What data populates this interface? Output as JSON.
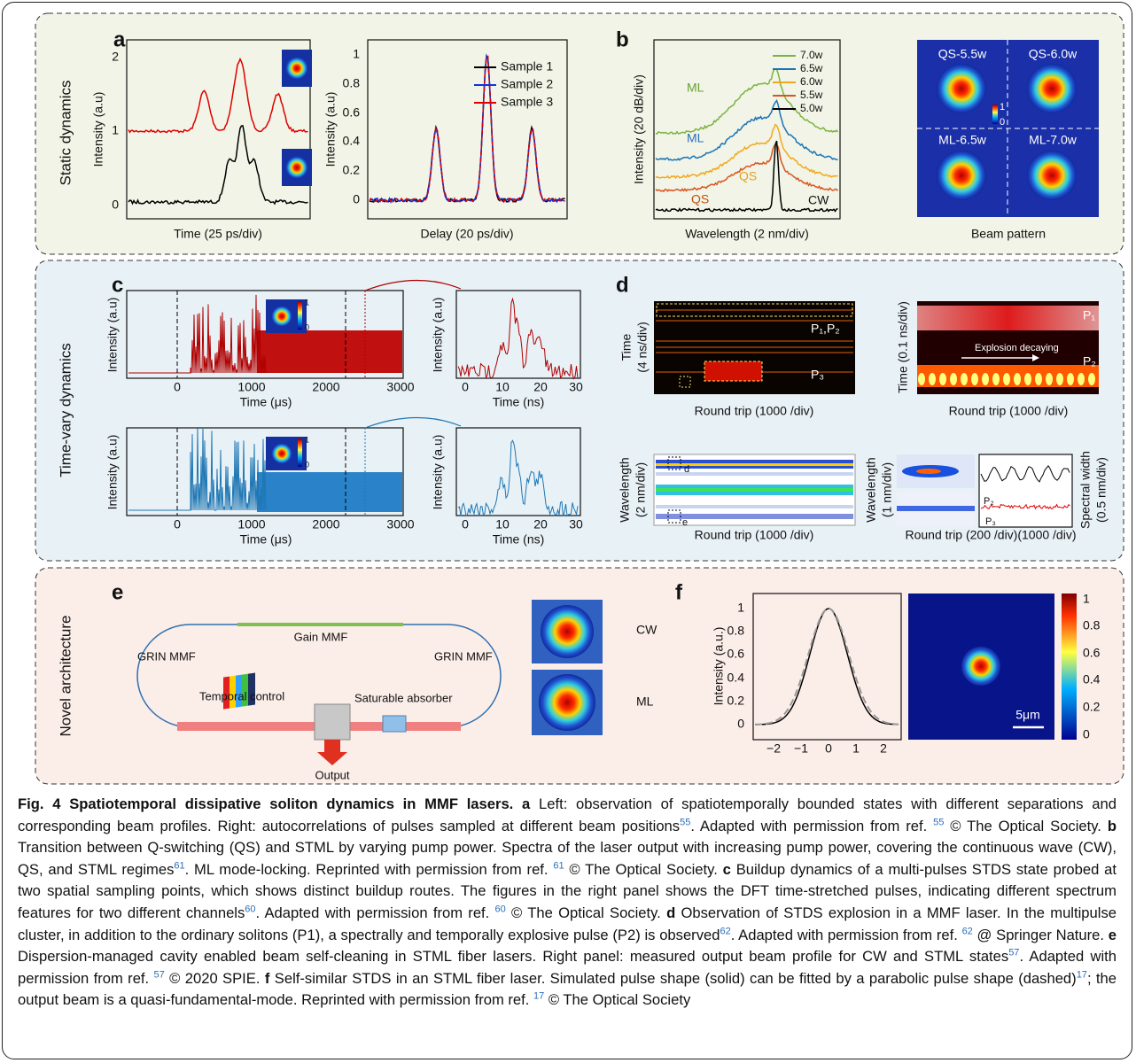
{
  "sections": [
    {
      "label": "Static dynamics"
    },
    {
      "label": "Time-vary dynamics"
    },
    {
      "label": "Novel architecture"
    }
  ],
  "panels": {
    "a": {
      "letter": "a",
      "left": {
        "ylabel": "Intensity (a.u)",
        "xlabel": "Time (25 ps/div)",
        "yticks": [
          "0",
          "1",
          "2"
        ]
      },
      "right": {
        "ylabel": "Intensity (a.u)",
        "xlabel": "Delay (20 ps/div)",
        "yticks": [
          "0",
          "0.2",
          "0.4",
          "0.6",
          "0.8",
          "1"
        ],
        "legend": [
          "Sample 1",
          "Sample 2",
          "Sample 3"
        ]
      }
    },
    "b": {
      "letter": "b",
      "ylabel": "Intensity (20 dB/div)",
      "xlabel": "Wavelength (2 nm/div)",
      "legend": [
        "7.0w",
        "6.5w",
        "6.0w",
        "5.5w",
        "5.0w"
      ],
      "annotations": [
        "ML",
        "ML",
        "QS",
        "QS",
        "CW"
      ],
      "beam": {
        "labels": [
          "QS-5.5w",
          "QS-6.0w",
          "ML-6.5w",
          "ML-7.0w"
        ],
        "colorbar": [
          "1",
          "0"
        ],
        "xlabel": "Beam pattern"
      }
    },
    "c": {
      "letter": "c",
      "ylabel": "Intensity (a.u)",
      "main_xlabel": "Time (μs)",
      "main_xticks": [
        "0",
        "1000",
        "2000",
        "3000"
      ],
      "right_xlabel": "Time (ns)",
      "right_xticks": [
        "0",
        "10",
        "20",
        "30"
      ],
      "colorbar": [
        "1",
        "0"
      ]
    },
    "d": {
      "letter": "d",
      "top_left": {
        "ylabel": [
          "Time",
          "(4 ns/div)"
        ],
        "xlabel": "Round trip (1000 /div)",
        "labels": [
          "P₁,P₂",
          "P₃"
        ]
      },
      "top_right": {
        "ylabel": "Time (0.1 ns/div)",
        "xlabel": "Round trip (1000 /div)",
        "labels": [
          "P₁",
          "P₂",
          "Explosion decaying"
        ]
      },
      "bottom_left": {
        "ylabel": [
          "Wavelength",
          "(2 nm/div)"
        ],
        "xlabel": "Round trip (1000 /div)",
        "labels": [
          "d",
          "e"
        ]
      },
      "bottom_right": {
        "ylabel": [
          "Wavelength",
          "(1 nm/div)"
        ],
        "xlabel": "Round trip (200 /div)(1000 /div)",
        "labels": [
          "P₂",
          "P₃"
        ],
        "y2label": [
          "Spectral width",
          "(0.5 nm/div)"
        ]
      }
    },
    "e": {
      "letter": "e",
      "labels": [
        "Gain MMF",
        "GRIN MMF",
        "GRIN MMF",
        "Temporal control",
        "Saturable absorber",
        "Output"
      ],
      "beams": [
        "CW",
        "ML"
      ]
    },
    "f": {
      "letter": "f",
      "ylabel": "Intensity (a.u.)",
      "xticks": [
        "−2",
        "−1",
        "0",
        "1",
        "2"
      ],
      "yticks": [
        "0",
        "0.2",
        "0.4",
        "0.6",
        "0.8",
        "1"
      ],
      "colorbar": [
        "1",
        "0.8",
        "0.6",
        "0.4",
        "0.2",
        "0"
      ],
      "scale": "5μm"
    }
  },
  "caption": {
    "title": "Fig. 4 Spatiotemporal dissipative soliton dynamics in MMF lasers.",
    "items": [
      {
        "label": "a",
        "parts": [
          " Left: observation of spatiotemporally bounded states with different separations and corresponding beam profiles. Right: autocorrelations of pulses sampled at different beam positions",
          "55",
          ". Adapted with permission from ref. ",
          "55",
          " © The Optical Society."
        ]
      },
      {
        "label": "b",
        "parts": [
          " Transition between Q-switching (QS) and STML by varying pump power. Spectra of the laser output with increasing pump power, covering the continuous wave (CW), QS, and STML regimes",
          "61",
          ". ML mode-locking. Reprinted with permission from ref. ",
          "61",
          " © The Optical Society."
        ]
      },
      {
        "label": "c",
        "parts": [
          " Buildup dynamics of a multi-pulses STDS state probed at two spatial sampling points, which shows distinct buildup routes. The figures in the right panel shows the DFT time-stretched pulses, indicating different spectrum features for two different channels",
          "60",
          ". Adapted with permission from ref. ",
          "60",
          " © The Optical Society."
        ]
      },
      {
        "label": "d",
        "parts": [
          " Observation of STDS explosion in a MMF laser. In the multipulse cluster, in addition to the ordinary solitons (P1), a spectrally and temporally explosive pulse (P2) is observed",
          "62",
          ". Adapted with permission from ref. ",
          "62",
          " @ Springer Nature."
        ]
      },
      {
        "label": "e",
        "parts": [
          " Dispersion-managed cavity enabled beam self-cleaning in STML fiber lasers. Right panel: measured output beam profile for CW and STML states",
          "57",
          ". Adapted with permission from ref. ",
          "57",
          " © 2020 SPIE."
        ]
      },
      {
        "label": "f",
        "parts": [
          " Self-similar STDS in an STML fiber laser. Simulated pulse shape (solid) can be fitted by a parabolic pulse shape (dashed)",
          "17",
          "; the output beam is a quasi-fundamental-mode. Reprinted with permission from ref. ",
          "17",
          " © The Optical Society"
        ]
      }
    ]
  }
}
